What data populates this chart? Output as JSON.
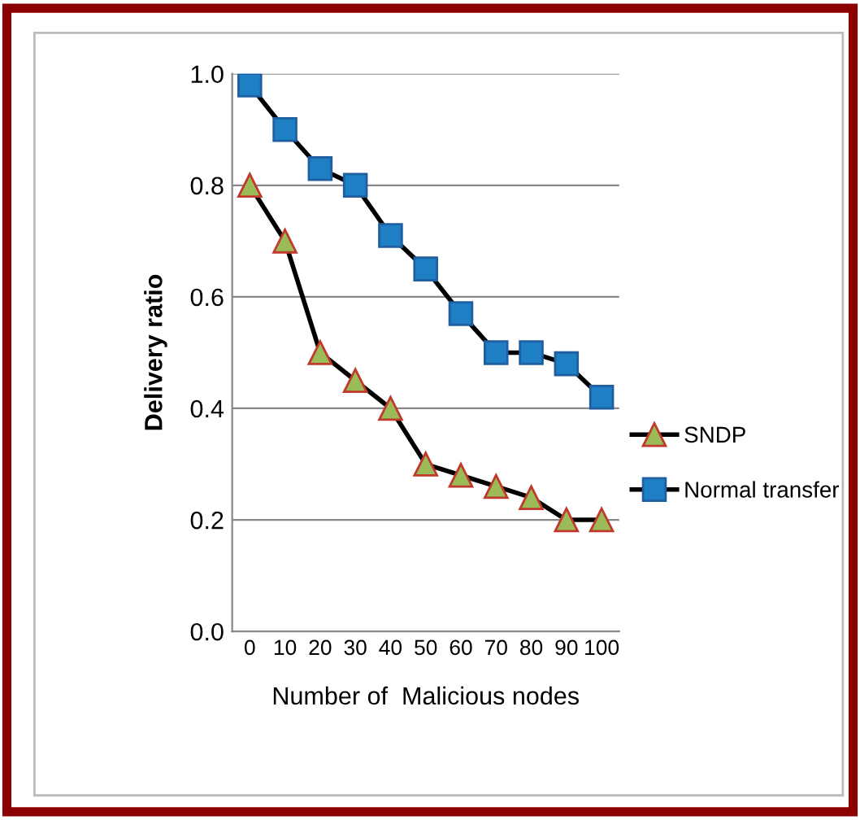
{
  "chart_data": {
    "type": "line",
    "xlabel": "Number of  Malicious nodes",
    "ylabel": "Delivery ratio",
    "categories": [
      "0",
      "10",
      "20",
      "30",
      "40",
      "50",
      "60",
      "70",
      "80",
      "90",
      "100"
    ],
    "series": [
      {
        "name": "SNDP",
        "color": "#9bbb59",
        "marker": "triangle",
        "values": [
          0.8,
          0.7,
          0.5,
          0.45,
          0.4,
          0.3,
          0.28,
          0.26,
          0.24,
          0.2,
          0.2
        ]
      },
      {
        "name": "Normal transfer",
        "color": "#1f7fc4",
        "marker": "square",
        "values": [
          0.98,
          0.9,
          0.83,
          0.8,
          0.71,
          0.65,
          0.57,
          0.5,
          0.5,
          0.48,
          0.42
        ]
      }
    ],
    "ylim": [
      0,
      1
    ],
    "yticks": [
      {
        "value": 0,
        "label": "0.0"
      },
      {
        "value": 0.2,
        "label": "0.2"
      },
      {
        "value": 0.4,
        "label": "0.4"
      },
      {
        "value": 0.6,
        "label": "0.6"
      },
      {
        "value": 0.8,
        "label": "0.8"
      },
      {
        "value": 1,
        "label": "1.0"
      }
    ],
    "grid": "y",
    "legend": "right",
    "line_style": "solid"
  }
}
